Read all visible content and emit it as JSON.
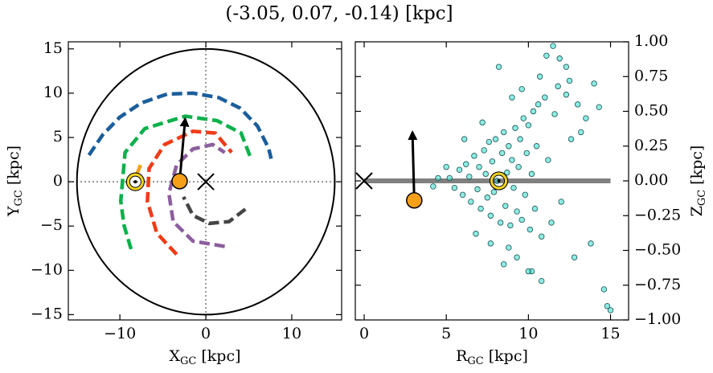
{
  "title": "(-3.05, 0.07, -0.14) [kpc]",
  "chart_data": [
    {
      "type": "galactic-plane",
      "xlabel": {
        "text": "X",
        "sub": "GC",
        "unit": "[kpc]"
      },
      "ylabel": {
        "text": "Y",
        "sub": "GC",
        "unit": "[kpc]"
      },
      "xlim": [
        -16,
        15.8
      ],
      "ylim": [
        -15.6,
        15.8
      ],
      "xticks": [
        {
          "value": -10,
          "label": "−10"
        },
        0,
        10
      ],
      "yticks": [
        {
          "value": -15,
          "label": "−15"
        },
        {
          "value": -10,
          "label": "−10"
        },
        {
          "value": -5,
          "label": "−5"
        },
        0,
        5,
        10,
        15
      ],
      "y_axis_side": "left",
      "zero_lines": true,
      "boundary_radius": 15,
      "series": [
        {
          "color": "#1b5e9c",
          "x": [
            -13.6,
            -12,
            -10,
            -7.5,
            -4.5,
            -1.5,
            1.5,
            4,
            6,
            7.3,
            7.6
          ],
          "values": [
            3,
            5.3,
            7.3,
            8.9,
            9.9,
            10,
            9.5,
            8.3,
            6.3,
            3.8,
            2.6
          ]
        },
        {
          "color": "#0bb14b",
          "x": [
            -8.7,
            -9.5,
            -9.9,
            -9.4,
            -7.1,
            -2.4,
            1.3,
            4.1,
            5.3
          ],
          "values": [
            -7.6,
            -5,
            -2.2,
            3.3,
            6,
            7.4,
            6.9,
            5.5,
            2.5
          ]
        },
        {
          "color": "#f03b16",
          "x": [
            -3.4,
            -5.7,
            -6.8,
            -6.6,
            -4.8,
            -1.5,
            1.1,
            3
          ],
          "values": [
            -8.2,
            -5.8,
            -2.2,
            1.5,
            4.2,
            5.7,
            5.5,
            3.3
          ]
        },
        {
          "color": "#8c5e9e",
          "x": [
            2.2,
            -1.5,
            -3.8,
            -4.3,
            -3.4,
            -1.5,
            0.8,
            2.2
          ],
          "values": [
            -7.3,
            -6.7,
            -4.5,
            -1.3,
            1.9,
            3.7,
            4.2,
            3.3
          ]
        },
        {
          "color": "#454545",
          "x": [
            4.6,
            2.7,
            0.4,
            -1.5,
            -2.6
          ],
          "values": [
            -3.1,
            -4.5,
            -4.7,
            -3.8,
            -1.7
          ]
        },
        {
          "color": "#f5a21b",
          "x": [
            -7.6,
            -8.2
          ],
          "values": [
            1.9,
            0.4
          ]
        }
      ],
      "galactic_center": {
        "x": 0,
        "y": 0
      },
      "sun": {
        "x": -8.2,
        "y": 0,
        "color": "#f2d21a"
      },
      "star": {
        "x": -3.05,
        "y": 0.07,
        "color": "#f6a01a"
      },
      "arrow_tip": {
        "x": -2.4,
        "y": 7.1
      }
    },
    {
      "type": "meridional-plane",
      "xlabel": {
        "text": "R",
        "sub": "GC",
        "unit": "[kpc]"
      },
      "ylabel": {
        "text": "Z",
        "sub": "GC",
        "unit": "[kpc]"
      },
      "xlim": [
        -0.54,
        16.1
      ],
      "ylim": [
        -1,
        1
      ],
      "xticks": [
        0,
        5,
        10,
        15
      ],
      "yticks": [
        {
          "value": -1,
          "label": "−1.00"
        },
        {
          "value": -0.75,
          "label": "−0.75"
        },
        {
          "value": -0.5,
          "label": "−0.50"
        },
        {
          "value": -0.25,
          "label": "−0.25"
        },
        {
          "value": 0,
          "label": "0.00"
        },
        0.25,
        {
          "value": 0.5,
          "label": "0.50"
        },
        0.75,
        {
          "value": 1,
          "label": "1.00"
        }
      ],
      "y_axis_side": "right",
      "plane_line": {
        "color": "#808080",
        "x": [
          0,
          15
        ],
        "values": [
          0,
          0
        ]
      },
      "points": {
        "color": "#40e0d0",
        "x": [
          5.2,
          5.5,
          5.8,
          6.0,
          6.2,
          6.4,
          6.5,
          6.7,
          6.9,
          7.0,
          7.1,
          7.3,
          7.4,
          7.5,
          7.6,
          7.7,
          7.8,
          7.9,
          8.0,
          8.1,
          8.3,
          8.4,
          8.5,
          8.6,
          8.7,
          8.8,
          8.9,
          9.0,
          9.1,
          9.2,
          9.3,
          9.4,
          9.5,
          9.6,
          9.7,
          9.8,
          9.9,
          10.0,
          10.1,
          10.2,
          10.3,
          10.4,
          10.5,
          10.6,
          10.8,
          11.0,
          11.2,
          11.4,
          11.6,
          11.8,
          12.0,
          12.3,
          12.6,
          13.0,
          13.5,
          4.5,
          4.2,
          6.8,
          7.2,
          8.2,
          8.8,
          9.3,
          10.7,
          11.5,
          12.3,
          8.5,
          9.6,
          10.2,
          12.5,
          14.0,
          13.8,
          13.2,
          14.3,
          14.6,
          15.0,
          14.8,
          7.7,
          10.0,
          12.8,
          11.1,
          9.0,
          6.1,
          5.0,
          10.8,
          11.9
        ],
        "values": [
          0.02,
          -0.05,
          0.08,
          -0.1,
          0.12,
          0.03,
          -0.15,
          0.18,
          -0.06,
          0.1,
          -0.2,
          0.22,
          0.05,
          -0.12,
          0.28,
          -0.25,
          0.14,
          -0.08,
          0.3,
          0.0,
          -0.3,
          0.2,
          0.35,
          -0.18,
          0.06,
          0.25,
          -0.32,
          0.15,
          -0.05,
          0.38,
          -0.22,
          0.1,
          0.3,
          -0.28,
          0.45,
          -0.1,
          0.2,
          0.4,
          -0.35,
          0.05,
          0.5,
          -0.2,
          0.25,
          0.55,
          -0.4,
          0.6,
          0.15,
          -0.3,
          0.48,
          0.68,
          -0.15,
          0.62,
          0.3,
          0.55,
          0.45,
          0.02,
          -0.04,
          -0.38,
          0.42,
          0.82,
          -0.48,
          -0.55,
          0.75,
          0.97,
          0.82,
          -0.6,
          0.66,
          -0.65,
          0.72,
          0.7,
          -0.45,
          0.35,
          0.53,
          -0.78,
          -0.93,
          -0.9,
          -0.45,
          -0.65,
          -0.55,
          0.9,
          0.6,
          0.3,
          0.1,
          -0.72,
          0.88
        ]
      },
      "galactic_center": {
        "x": 0,
        "y": 0
      },
      "sun": {
        "x": 8.2,
        "y": 0,
        "color": "#f2d21a"
      },
      "star": {
        "x": 3.05,
        "y": -0.14,
        "color": "#f6a01a"
      },
      "arrow_tip": {
        "x": 2.94,
        "y": 0.35
      }
    }
  ]
}
